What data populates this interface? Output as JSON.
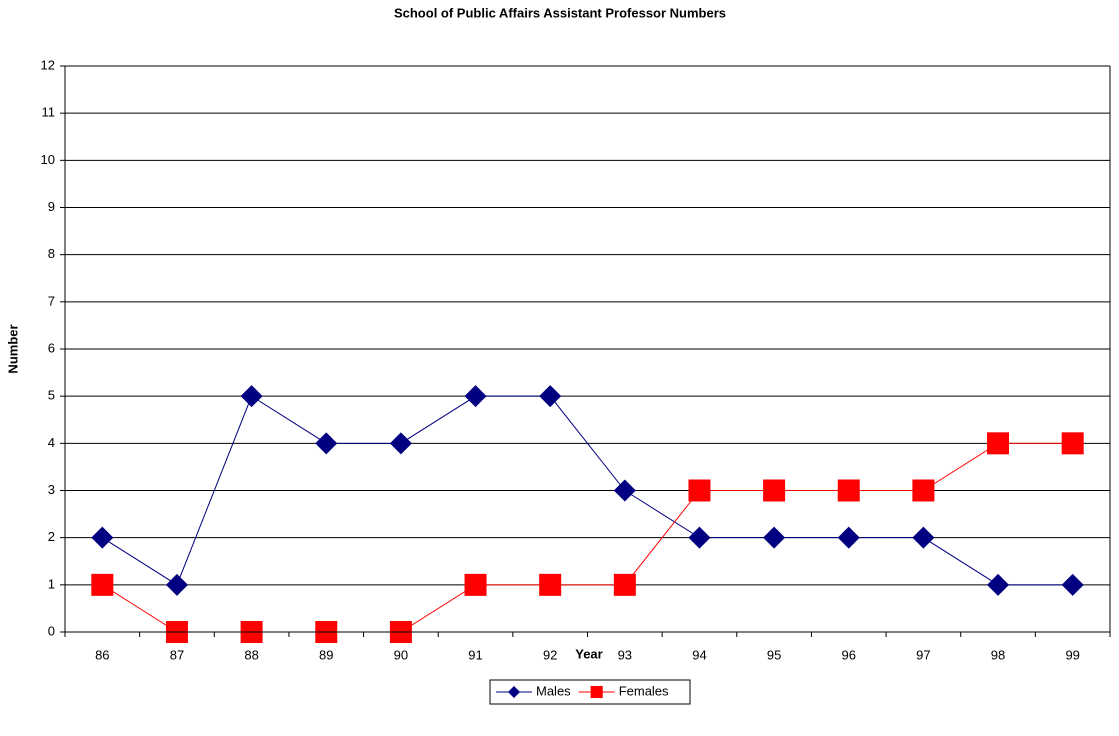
{
  "chart_data": {
    "type": "line",
    "title": "School of Public Affairs Assistant Professor Numbers",
    "x_label": "Year",
    "y_label": "Number",
    "categories": [
      "86",
      "87",
      "88",
      "89",
      "90",
      "91",
      "92",
      "93",
      "94",
      "95",
      "96",
      "97",
      "98",
      "99"
    ],
    "series": [
      {
        "name": "Males",
        "color": "#000080",
        "marker": "diamond",
        "values": [
          2,
          1,
          5,
          4,
          4,
          5,
          5,
          3,
          2,
          2,
          2,
          2,
          1,
          1
        ]
      },
      {
        "name": "Females",
        "color": "#ff0000",
        "marker": "square",
        "values": [
          1,
          0,
          0,
          0,
          0,
          1,
          1,
          1,
          3,
          3,
          3,
          3,
          4,
          4
        ]
      }
    ],
    "ylim": [
      0,
      12
    ],
    "yticks": [
      0,
      1,
      2,
      3,
      4,
      5,
      6,
      7,
      8,
      9,
      10,
      11,
      12
    ],
    "grid": true,
    "legend": "bottom"
  }
}
